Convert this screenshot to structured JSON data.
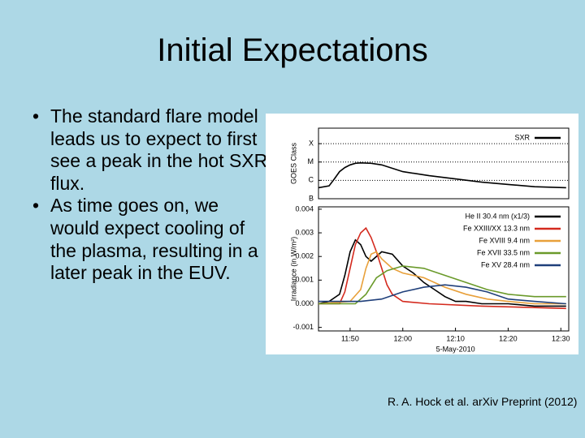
{
  "slide": {
    "title": "Initial Expectations",
    "bullets": [
      "The standard flare model leads us to expect to first see a peak in the hot SXR flux.",
      "As time goes on, we would expect cooling of the plasma, resulting in a later peak in the EUV."
    ],
    "citation": "R. A. Hock et al. arXiv Preprint (2012)"
  },
  "chart_data": [
    {
      "type": "line",
      "ylabel": "GOES Class",
      "log_y": true,
      "grid": true,
      "legend": "upper right",
      "xlim": [
        704,
        751.5
      ],
      "ylim": [
        1e-07,
        0.0007
      ],
      "yticks": [
        {
          "value": 0.0001,
          "label": "X"
        },
        {
          "value": 1e-05,
          "label": "M"
        },
        {
          "value": 1e-06,
          "label": "C"
        },
        {
          "value": 1e-07,
          "label": "B"
        }
      ],
      "series": [
        {
          "name": "SXR",
          "color": "#000000",
          "x": [
            704,
            706,
            707,
            708,
            709,
            710,
            711,
            712,
            714,
            716,
            720,
            725,
            730,
            735,
            740,
            745,
            751
          ],
          "values": [
            4e-07,
            5e-07,
            1.2e-06,
            3e-06,
            5e-06,
            7e-06,
            8.5e-06,
            9e-06,
            8.5e-06,
            7e-06,
            3e-06,
            1.8e-06,
            1.2e-06,
            8e-07,
            6e-07,
            4.5e-07,
            4e-07
          ]
        }
      ]
    },
    {
      "type": "line",
      "ylabel": "Irradiance (in W/m²)",
      "xlabel": "5-May-2010",
      "grid": false,
      "legend": "upper right",
      "xlim": [
        704,
        751.5
      ],
      "ylim": [
        -0.00115,
        0.0041
      ],
      "xticks": [
        {
          "value": 710,
          "label": "11:50"
        },
        {
          "value": 720,
          "label": "12:00"
        },
        {
          "value": 730,
          "label": "12:10"
        },
        {
          "value": 740,
          "label": "12:20"
        },
        {
          "value": 750,
          "label": "12:30"
        }
      ],
      "yticks": [
        0.004,
        0.003,
        0.002,
        0.001,
        {
          "value": 0,
          "label": "0.000"
        },
        -0.001
      ],
      "series": [
        {
          "name": "He II 30.4 nm (x1/3)",
          "color": "#000000",
          "x": [
            704,
            706,
            708,
            709,
            710,
            711,
            712,
            713,
            714,
            716,
            718,
            720,
            722,
            724,
            726,
            728,
            730,
            732,
            735,
            740,
            745,
            751
          ],
          "values": [
            0.0,
            0.0001,
            0.0004,
            0.0012,
            0.0022,
            0.0027,
            0.0025,
            0.002,
            0.0018,
            0.0022,
            0.0021,
            0.0016,
            0.0013,
            0.0009,
            0.0006,
            0.0003,
            0.0001,
            0.0001,
            0.0,
            0.0,
            -0.0001,
            -0.0001
          ]
        },
        {
          "name": "Fe XXIII/XX 13.3 nm",
          "color": "#d42a1e",
          "x": [
            704,
            708,
            709,
            710,
            711,
            712,
            713,
            714,
            715,
            716,
            717,
            718,
            720,
            725,
            735,
            751
          ],
          "values": [
            0.0,
            0.0,
            0.0005,
            0.0015,
            0.0025,
            0.003,
            0.0032,
            0.0028,
            0.0022,
            0.0015,
            0.0008,
            0.0004,
            0.0001,
            0.0,
            -0.0001,
            -0.0002
          ]
        },
        {
          "name": "Fe XVIII 9.4 nm",
          "color": "#e8a03a",
          "x": [
            704,
            710,
            712,
            713,
            714,
            715,
            716,
            718,
            720,
            724,
            728,
            732,
            736,
            740,
            745,
            751
          ],
          "values": [
            0.0,
            0.0001,
            0.0006,
            0.0015,
            0.0021,
            0.0022,
            0.0019,
            0.0015,
            0.0013,
            0.0011,
            0.0007,
            0.0004,
            0.0002,
            0.0001,
            0.0,
            0.0
          ]
        },
        {
          "name": "Fe XVII 33.5 nm",
          "color": "#6a9a2a",
          "x": [
            704,
            711,
            713,
            715,
            717,
            720,
            724,
            728,
            732,
            736,
            740,
            745,
            751
          ],
          "values": [
            0.0,
            0.0,
            0.0004,
            0.0011,
            0.0014,
            0.0016,
            0.0015,
            0.0012,
            0.0009,
            0.0006,
            0.0004,
            0.0003,
            0.0003
          ]
        },
        {
          "name": "Fe XV 28.4 nm",
          "color": "#1f3f7a",
          "x": [
            704,
            712,
            716,
            720,
            724,
            728,
            732,
            736,
            740,
            745,
            751
          ],
          "values": [
            0.0001,
            0.0001,
            0.0002,
            0.0005,
            0.0007,
            0.0008,
            0.0007,
            0.0005,
            0.0002,
            0.0001,
            0.0
          ]
        }
      ]
    }
  ]
}
